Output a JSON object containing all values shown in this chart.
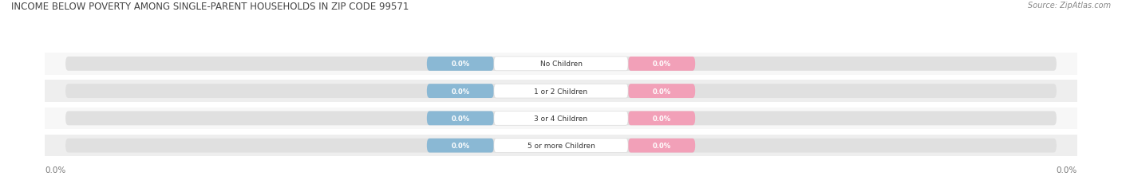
{
  "title": "INCOME BELOW POVERTY AMONG SINGLE-PARENT HOUSEHOLDS IN ZIP CODE 99571",
  "source": "Source: ZipAtlas.com",
  "categories": [
    "No Children",
    "1 or 2 Children",
    "3 or 4 Children",
    "5 or more Children"
  ],
  "single_father_values": [
    0.0,
    0.0,
    0.0,
    0.0
  ],
  "single_mother_values": [
    0.0,
    0.0,
    0.0,
    0.0
  ],
  "father_color": "#8ab8d4",
  "mother_color": "#f2a0b8",
  "track_color": "#e0e0e0",
  "row_bg_even": "#f7f7f7",
  "row_bg_odd": "#eeeeee",
  "label_text_color": "#333333",
  "value_text_color": "#ffffff",
  "title_color": "#444444",
  "source_color": "#888888",
  "axis_val_color": "#777777",
  "figsize": [
    14.06,
    2.32
  ],
  "dpi": 100,
  "x_left_label": "0.0%",
  "x_right_label": "0.0%"
}
